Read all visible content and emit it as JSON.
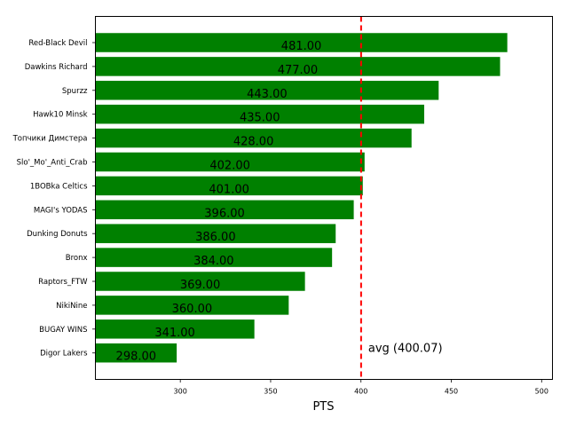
{
  "chart_data": {
    "type": "bar",
    "orientation": "horizontal",
    "categories": [
      "Red-Black Devil",
      "Dawkins Richard",
      "Spurzz",
      "Hawk10 Minsk",
      "Топчики Димстера",
      "Slo'_Mo'_Anti_Crab",
      "1BOBka Celtics",
      "MAGI's YODAS",
      "Dunking Donuts",
      "Bronx",
      "Raptors_FTW",
      "NikiNine",
      "BUGAY WINS",
      "Digor Lakers"
    ],
    "values": [
      481,
      477,
      443,
      435,
      428,
      402,
      401,
      396,
      386,
      384,
      369,
      360,
      341,
      298
    ],
    "value_labels": [
      "481.00",
      "477.00",
      "443.00",
      "435.00",
      "428.00",
      "402.00",
      "401.00",
      "396.00",
      "386.00",
      "384.00",
      "369.00",
      "360.00",
      "341.00",
      "298.00"
    ],
    "xlabel": "PTS",
    "ylabel": "",
    "xlim": [
      253,
      506
    ],
    "xticks": [
      300,
      350,
      400,
      450,
      500
    ],
    "xtick_labels": [
      "300",
      "350",
      "400",
      "450",
      "500"
    ],
    "bar_color": "#008000",
    "reference_line": {
      "value": 400.07,
      "label": "avg (400.07)",
      "color": "#ff0000",
      "style": "dashed"
    },
    "grid": false,
    "legend": "none"
  }
}
